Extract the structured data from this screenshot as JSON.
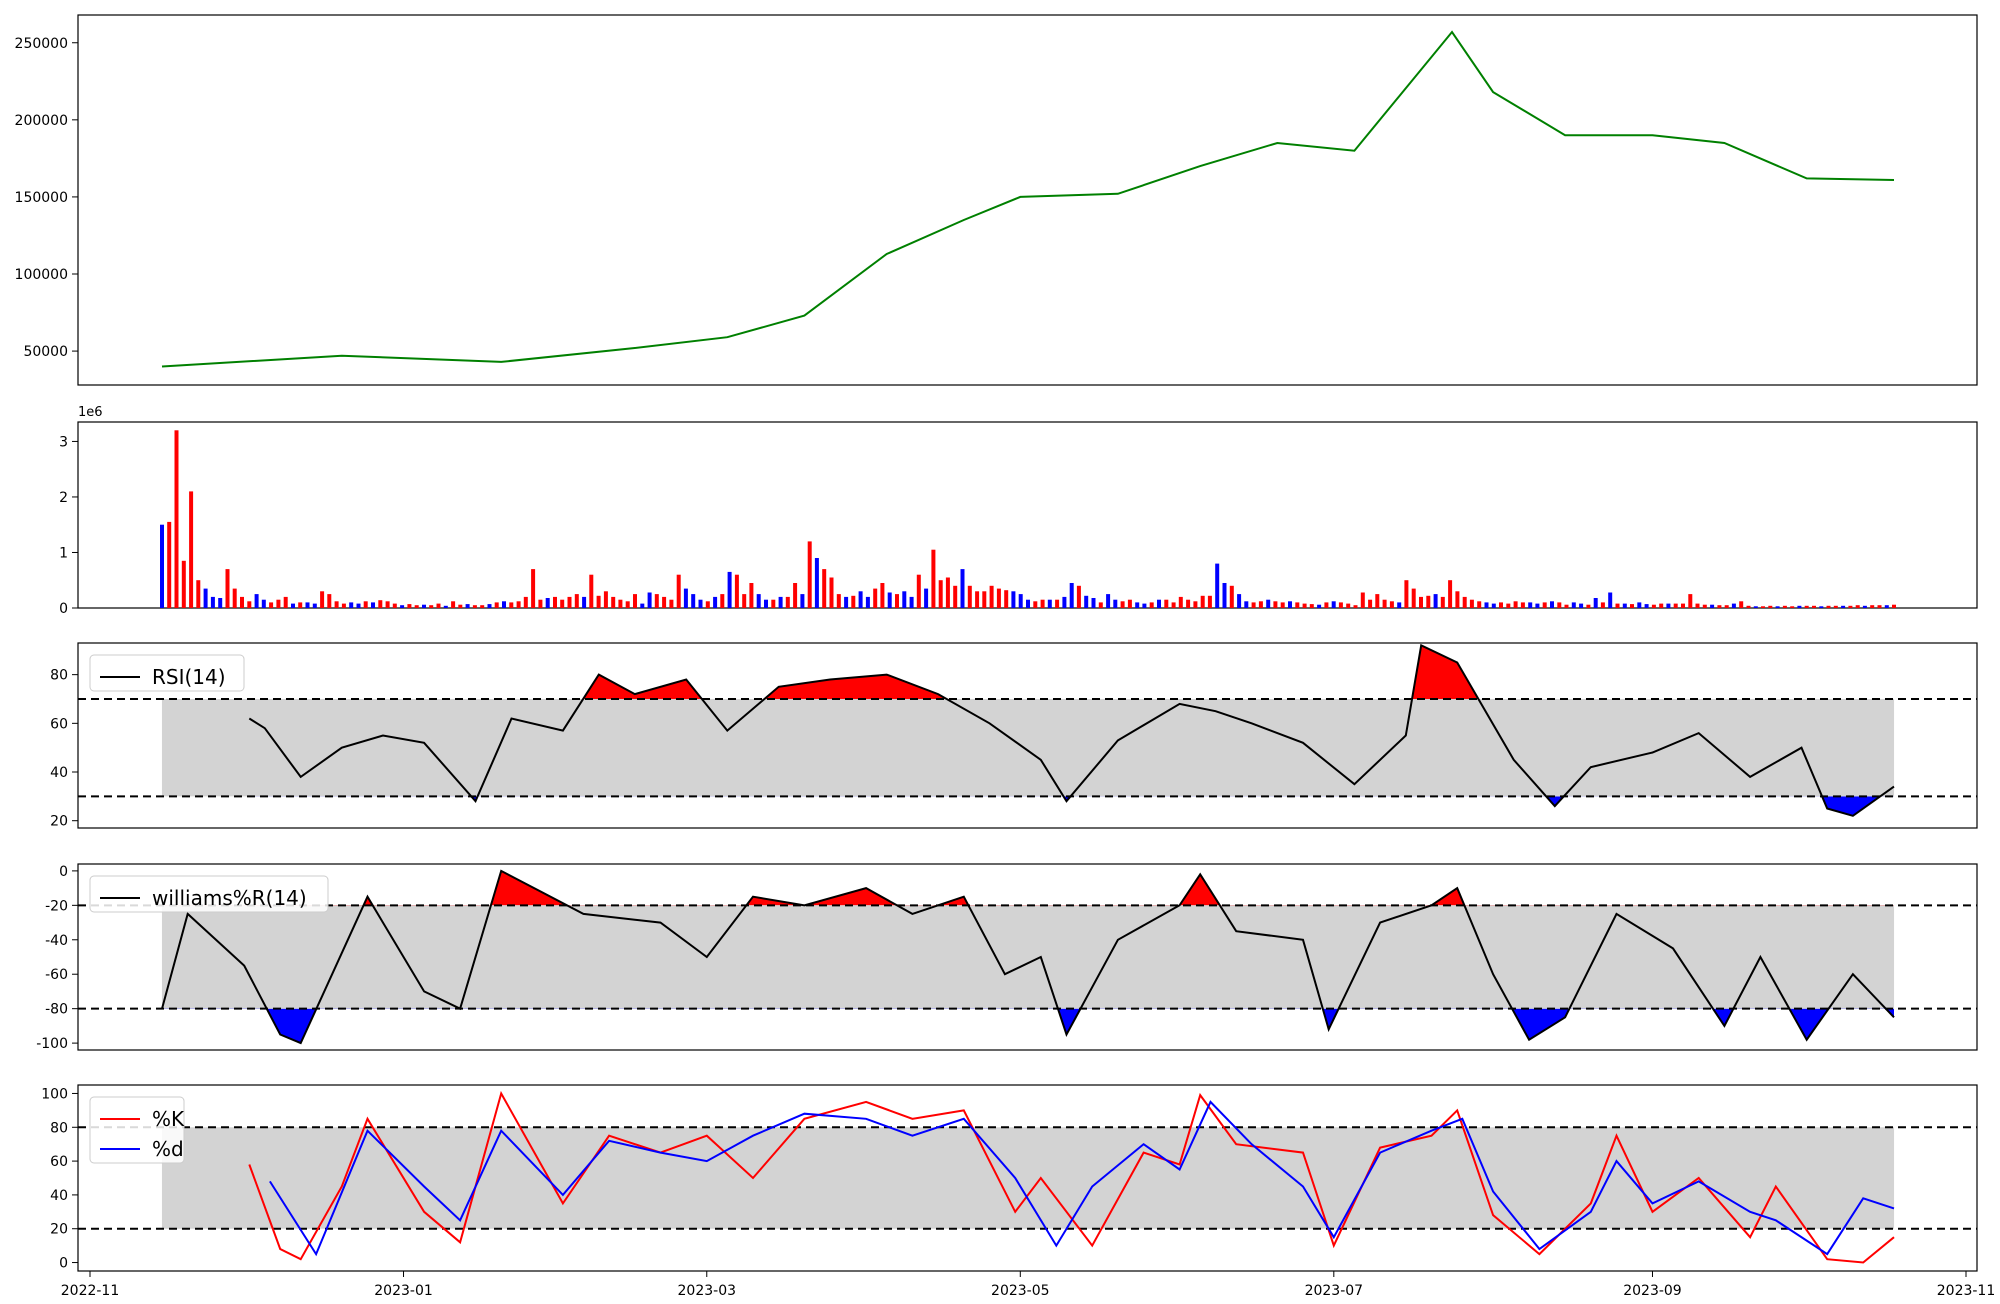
{
  "chart_data": [
    {
      "type": "line",
      "panel": "price",
      "color": "#008000",
      "ylim": [
        28000,
        268000
      ],
      "yticks": [
        50000,
        100000,
        150000,
        200000,
        250000
      ],
      "x_anchors": [
        "2022-11-15",
        "2022-12-20",
        "2023-01-20",
        "2023-02-15",
        "2023-03-05",
        "2023-03-20",
        "2023-04-05",
        "2023-04-20",
        "2023-05-01",
        "2023-05-20",
        "2023-06-05",
        "2023-06-20",
        "2023-07-05",
        "2023-07-24",
        "2023-08-01",
        "2023-08-15",
        "2023-09-01",
        "2023-09-15",
        "2023-10-01",
        "2023-10-18"
      ],
      "y_anchors": [
        40000,
        47000,
        43000,
        52000,
        59000,
        73000,
        113000,
        135000,
        150000,
        152000,
        170000,
        185000,
        180000,
        257000,
        218000,
        190000,
        190000,
        185000,
        162000,
        161000
      ]
    },
    {
      "type": "bar",
      "panel": "volume",
      "scale_label": "1e6",
      "ylim": [
        0,
        3.35
      ],
      "yticks": [
        0,
        1,
        2,
        3
      ],
      "x_start": "2022-11-15",
      "values": [
        1.5,
        1.55,
        3.2,
        0.85,
        2.1,
        0.5,
        0.35,
        0.2,
        0.18,
        0.7,
        0.35,
        0.2,
        0.12,
        0.25,
        0.15,
        0.1,
        0.15,
        0.2,
        0.08,
        0.1,
        0.1,
        0.08,
        0.3,
        0.25,
        0.12,
        0.08,
        0.1,
        0.08,
        0.12,
        0.1,
        0.14,
        0.12,
        0.08,
        0.05,
        0.07,
        0.05,
        0.06,
        0.05,
        0.08,
        0.04,
        0.12,
        0.06,
        0.07,
        0.05,
        0.05,
        0.07,
        0.1,
        0.12,
        0.1,
        0.12,
        0.2,
        0.7,
        0.15,
        0.18,
        0.2,
        0.15,
        0.2,
        0.25,
        0.2,
        0.6,
        0.22,
        0.3,
        0.2,
        0.15,
        0.12,
        0.25,
        0.08,
        0.28,
        0.25,
        0.2,
        0.15,
        0.6,
        0.35,
        0.25,
        0.15,
        0.12,
        0.2,
        0.25,
        0.65,
        0.6,
        0.25,
        0.45,
        0.25,
        0.15,
        0.15,
        0.2,
        0.2,
        0.45,
        0.25,
        1.2,
        0.9,
        0.7,
        0.55,
        0.25,
        0.2,
        0.22,
        0.3,
        0.2,
        0.35,
        0.45,
        0.28,
        0.25,
        0.3,
        0.2,
        0.6,
        0.35,
        1.05,
        0.5,
        0.55,
        0.4,
        0.7,
        0.4,
        0.3,
        0.3,
        0.4,
        0.35,
        0.32,
        0.3,
        0.25,
        0.15,
        0.12,
        0.15,
        0.15,
        0.15,
        0.2,
        0.45,
        0.4,
        0.22,
        0.18,
        0.1,
        0.25,
        0.15,
        0.12,
        0.15,
        0.1,
        0.08,
        0.1,
        0.15,
        0.15,
        0.1,
        0.2,
        0.15,
        0.12,
        0.22,
        0.22,
        0.8,
        0.45,
        0.4,
        0.25,
        0.12,
        0.1,
        0.12,
        0.15,
        0.12,
        0.1,
        0.12,
        0.1,
        0.08,
        0.07,
        0.06,
        0.1,
        0.12,
        0.1,
        0.08,
        0.05,
        0.28,
        0.15,
        0.25,
        0.15,
        0.12,
        0.1,
        0.5,
        0.35,
        0.2,
        0.22,
        0.25,
        0.2,
        0.5,
        0.3,
        0.2,
        0.15,
        0.12,
        0.1,
        0.08,
        0.1,
        0.08,
        0.12,
        0.1,
        0.1,
        0.08,
        0.1,
        0.12,
        0.1,
        0.06,
        0.1,
        0.08,
        0.06,
        0.18,
        0.1,
        0.28,
        0.08,
        0.08,
        0.07,
        0.1,
        0.07,
        0.06,
        0.08,
        0.08,
        0.08,
        0.08,
        0.25,
        0.08,
        0.06,
        0.06,
        0.05,
        0.05,
        0.08,
        0.12,
        0.04,
        0.03,
        0.03,
        0.04,
        0.03,
        0.04,
        0.03,
        0.04,
        0.04,
        0.04,
        0.03,
        0.04,
        0.04,
        0.04,
        0.04,
        0.05,
        0.04,
        0.05,
        0.05,
        0.05,
        0.06
      ],
      "colors": [
        "blue",
        "red"
      ]
    },
    {
      "type": "line",
      "panel": "rsi",
      "legend": [
        "RSI(14)"
      ],
      "ylim": [
        17,
        93
      ],
      "yticks": [
        20,
        40,
        60,
        80
      ],
      "thresholds": [
        30,
        70
      ],
      "x_anchors": [
        "2022-12-02",
        "2022-12-05",
        "2022-12-12",
        "2022-12-20",
        "2022-12-28",
        "2023-01-05",
        "2023-01-15",
        "2023-01-22",
        "2023-02-01",
        "2023-02-08",
        "2023-02-15",
        "2023-02-25",
        "2023-03-05",
        "2023-03-15",
        "2023-03-25",
        "2023-04-05",
        "2023-04-15",
        "2023-04-25",
        "2023-05-05",
        "2023-05-10",
        "2023-05-20",
        "2023-06-01",
        "2023-06-08",
        "2023-06-15",
        "2023-06-25",
        "2023-07-05",
        "2023-07-15",
        "2023-07-18",
        "2023-07-25",
        "2023-08-05",
        "2023-08-13",
        "2023-08-20",
        "2023-09-01",
        "2023-09-10",
        "2023-09-20",
        "2023-09-30",
        "2023-10-05",
        "2023-10-10",
        "2023-10-18"
      ],
      "y_anchors": [
        62,
        58,
        38,
        50,
        55,
        52,
        28,
        62,
        57,
        80,
        72,
        78,
        57,
        75,
        78,
        80,
        72,
        60,
        45,
        28,
        53,
        68,
        65,
        60,
        52,
        35,
        55,
        92,
        85,
        45,
        26,
        42,
        48,
        56,
        38,
        50,
        25,
        22,
        34
      ],
      "fill_band": [
        30,
        70
      ]
    },
    {
      "type": "line",
      "panel": "williams_r",
      "legend": [
        "williams%R(14)"
      ],
      "ylim": [
        -104,
        4
      ],
      "yticks": [
        -100,
        -80,
        -60,
        -40,
        -20,
        0
      ],
      "thresholds": [
        -80,
        -20
      ],
      "x_anchors": [
        "2022-11-15",
        "2022-11-20",
        "2022-12-01",
        "2022-12-08",
        "2022-12-12",
        "2022-12-25",
        "2023-01-05",
        "2023-01-12",
        "2023-01-20",
        "2023-02-05",
        "2023-02-20",
        "2023-03-01",
        "2023-03-10",
        "2023-03-20",
        "2023-04-01",
        "2023-04-10",
        "2023-04-20",
        "2023-04-28",
        "2023-05-05",
        "2023-05-10",
        "2023-05-20",
        "2023-06-01",
        "2023-06-05",
        "2023-06-12",
        "2023-06-25",
        "2023-06-30",
        "2023-07-10",
        "2023-07-20",
        "2023-07-25",
        "2023-08-01",
        "2023-08-08",
        "2023-08-15",
        "2023-08-25",
        "2023-09-05",
        "2023-09-15",
        "2023-09-22",
        "2023-10-01",
        "2023-10-10",
        "2023-10-18"
      ],
      "y_anchors": [
        -80,
        -25,
        -55,
        -95,
        -100,
        -15,
        -70,
        -80,
        0,
        -25,
        -30,
        -50,
        -15,
        -20,
        -10,
        -25,
        -15,
        -60,
        -50,
        -95,
        -40,
        -20,
        -2,
        -35,
        -40,
        -92,
        -30,
        -20,
        -10,
        -60,
        -98,
        -85,
        -25,
        -45,
        -90,
        -50,
        -98,
        -60,
        -85
      ],
      "fill_band": [
        -80,
        -20
      ]
    },
    {
      "type": "line",
      "panel": "stochastic",
      "legend": [
        "%K",
        "%d"
      ],
      "ylim": [
        -5,
        105
      ],
      "yticks": [
        0,
        20,
        40,
        60,
        80,
        100
      ],
      "thresholds": [
        20,
        80
      ],
      "x_anchors_k": [
        "2022-12-02",
        "2022-12-08",
        "2022-12-12",
        "2022-12-20",
        "2022-12-25",
        "2023-01-05",
        "2023-01-12",
        "2023-01-20",
        "2023-02-01",
        "2023-02-10",
        "2023-02-20",
        "2023-03-01",
        "2023-03-10",
        "2023-03-20",
        "2023-04-01",
        "2023-04-10",
        "2023-04-20",
        "2023-04-30",
        "2023-05-05",
        "2023-05-15",
        "2023-05-25",
        "2023-06-01",
        "2023-06-05",
        "2023-06-12",
        "2023-06-25",
        "2023-07-01",
        "2023-07-10",
        "2023-07-20",
        "2023-07-25",
        "2023-08-01",
        "2023-08-10",
        "2023-08-20",
        "2023-08-25",
        "2023-09-01",
        "2023-09-10",
        "2023-09-20",
        "2023-09-25",
        "2023-10-05",
        "2023-10-12",
        "2023-10-18"
      ],
      "y_anchors_k": [
        58,
        8,
        2,
        45,
        85,
        30,
        12,
        100,
        35,
        75,
        65,
        75,
        50,
        85,
        95,
        85,
        90,
        30,
        50,
        10,
        65,
        58,
        99,
        70,
        65,
        10,
        68,
        75,
        90,
        28,
        5,
        35,
        75,
        30,
        50,
        15,
        45,
        2,
        0,
        15
      ],
      "x_anchors_d": [
        "2022-12-06",
        "2022-12-15",
        "2022-12-25",
        "2023-01-05",
        "2023-01-12",
        "2023-01-20",
        "2023-02-01",
        "2023-02-10",
        "2023-02-20",
        "2023-03-01",
        "2023-03-10",
        "2023-03-20",
        "2023-04-01",
        "2023-04-10",
        "2023-04-20",
        "2023-04-30",
        "2023-05-08",
        "2023-05-15",
        "2023-05-25",
        "2023-06-01",
        "2023-06-07",
        "2023-06-15",
        "2023-06-25",
        "2023-07-01",
        "2023-07-10",
        "2023-07-20",
        "2023-07-26",
        "2023-08-01",
        "2023-08-10",
        "2023-08-20",
        "2023-08-25",
        "2023-09-01",
        "2023-09-10",
        "2023-09-20",
        "2023-09-25",
        "2023-10-05",
        "2023-10-12",
        "2023-10-18"
      ],
      "y_anchors_d": [
        48,
        5,
        78,
        45,
        25,
        78,
        40,
        72,
        65,
        60,
        75,
        88,
        85,
        75,
        85,
        50,
        10,
        45,
        70,
        55,
        95,
        70,
        45,
        15,
        65,
        78,
        85,
        42,
        8,
        30,
        60,
        35,
        48,
        30,
        25,
        5,
        38,
        32
      ],
      "series": [
        {
          "name": "%K",
          "color": "#ff0000"
        },
        {
          "name": "%d",
          "color": "#0000ff"
        }
      ],
      "fill_band": [
        20,
        80
      ]
    }
  ],
  "x_axis": {
    "ticks": [
      "2022-11",
      "2023-01",
      "2023-03",
      "2023-05",
      "2023-07",
      "2023-09",
      "2023-11"
    ]
  }
}
